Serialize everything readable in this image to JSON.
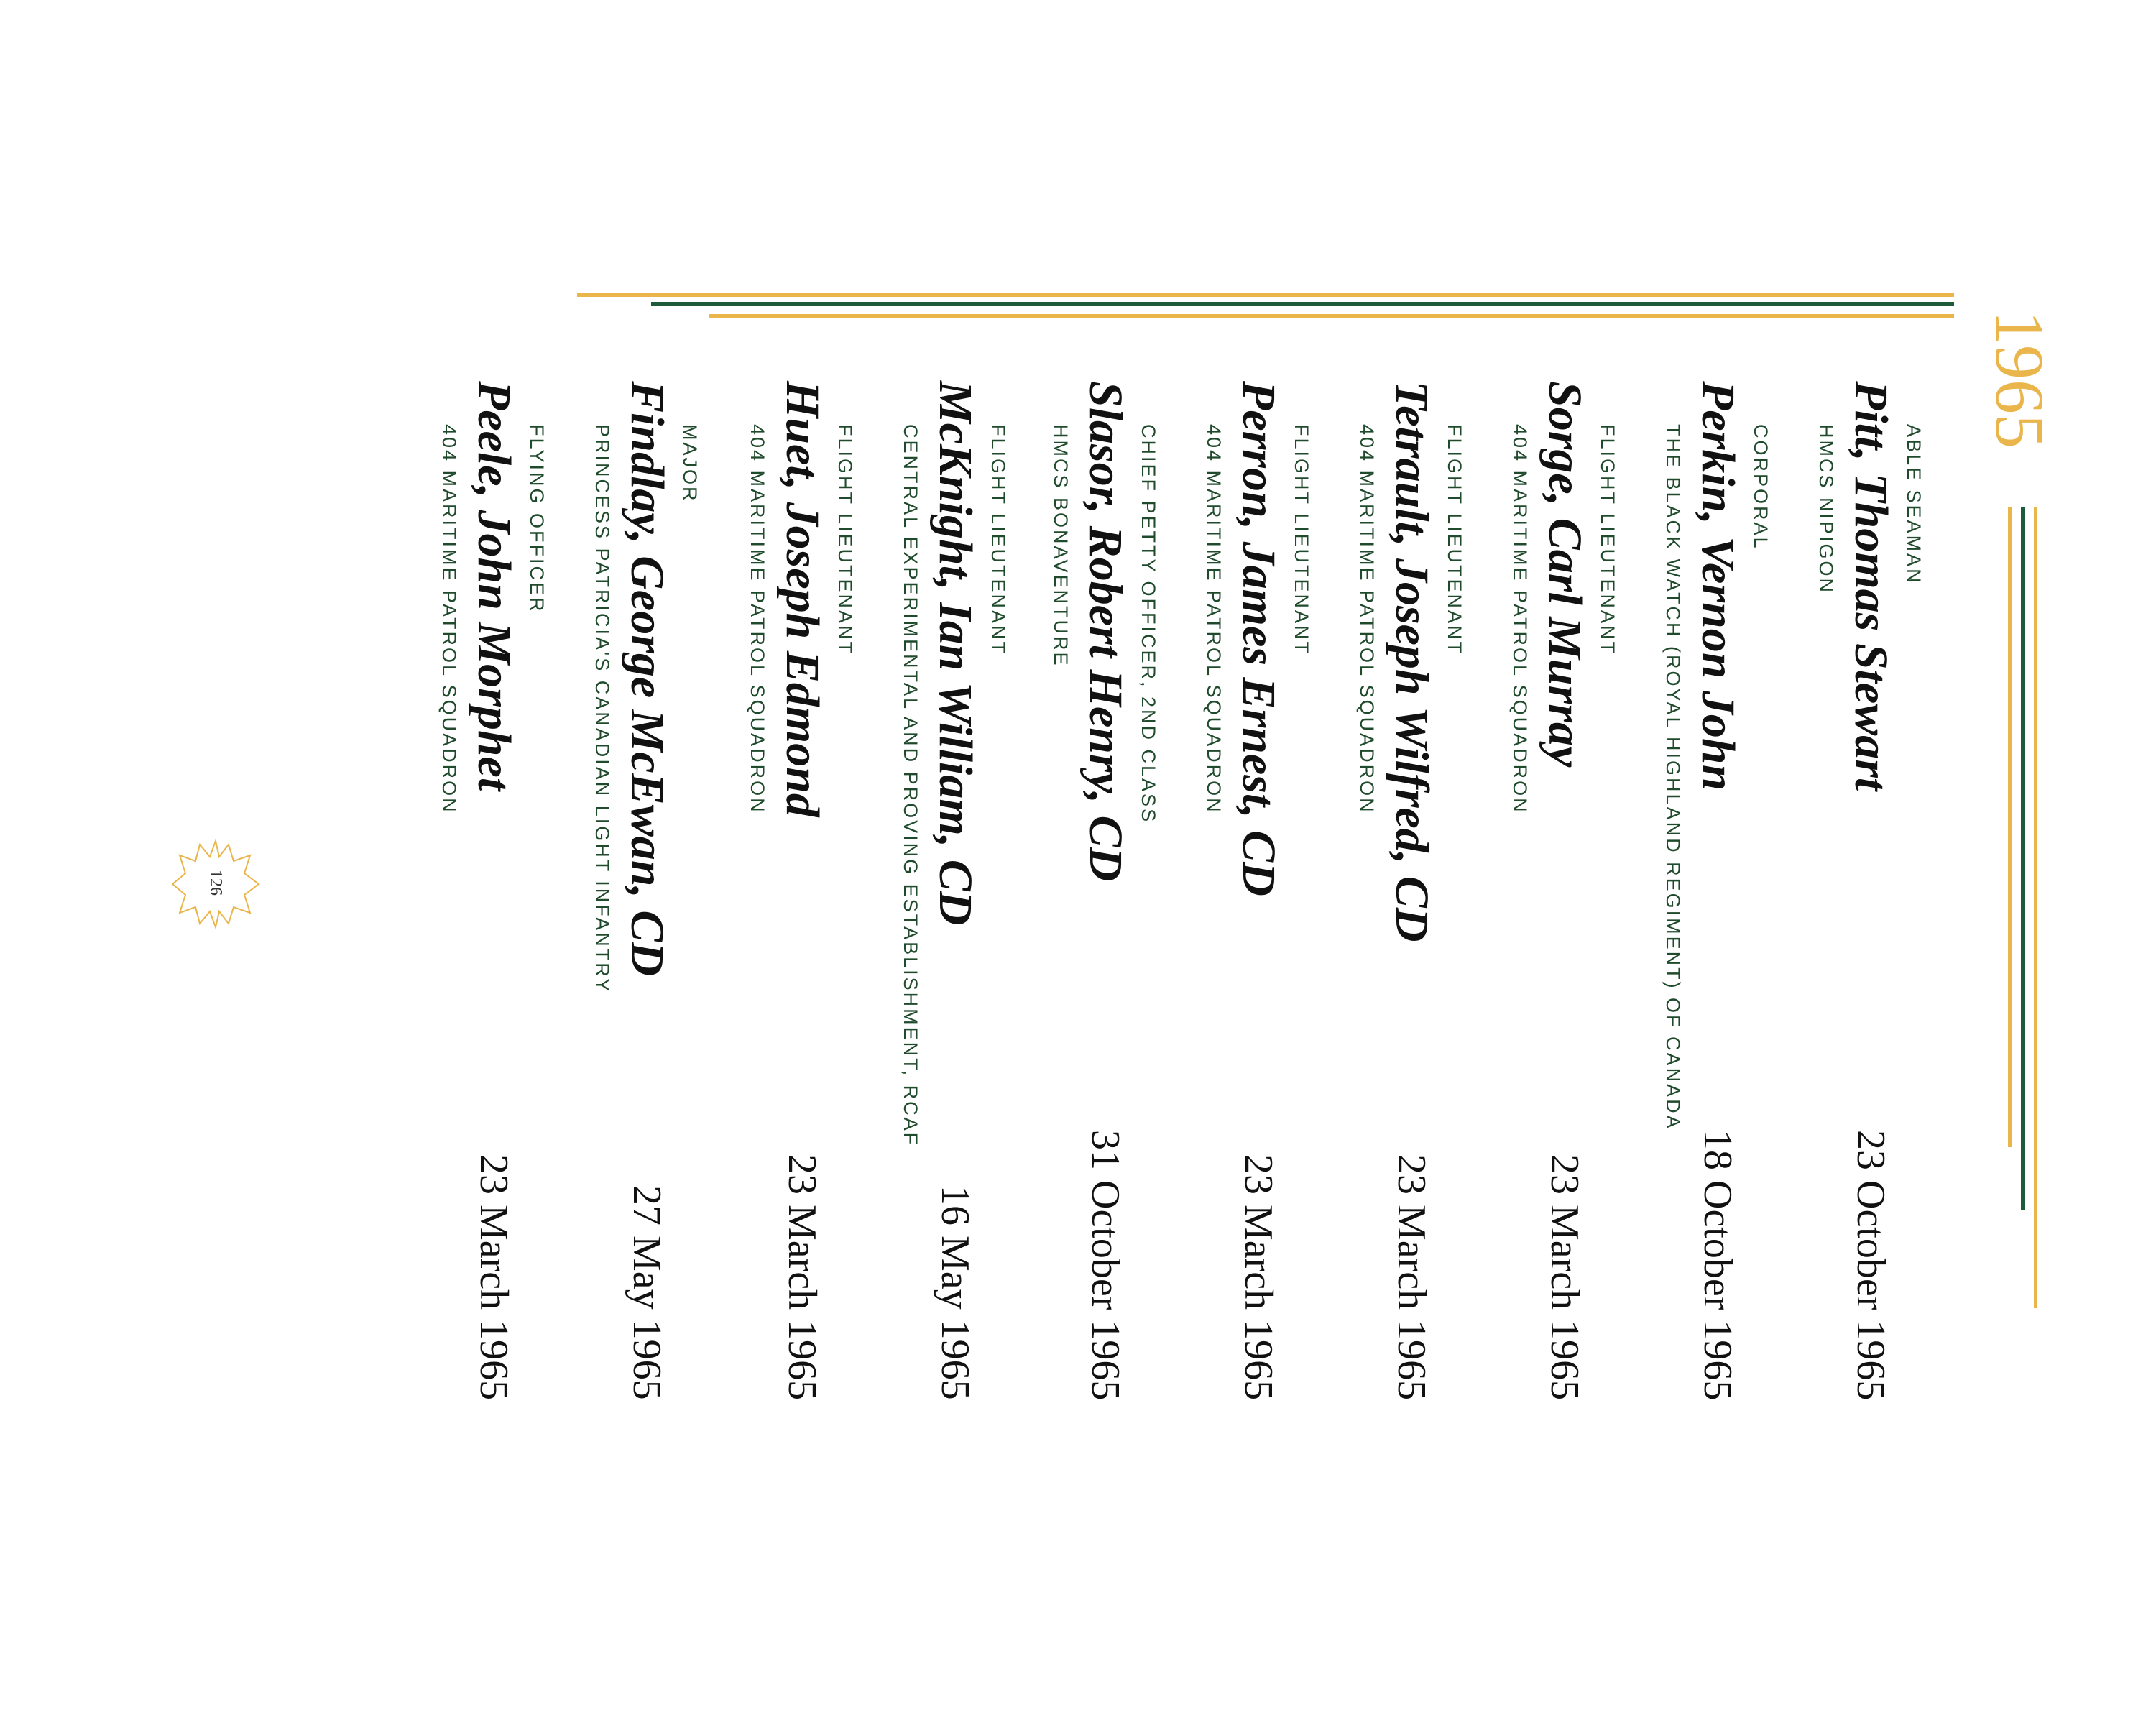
{
  "page": {
    "year_heading": "1965",
    "page_number": "126",
    "colors": {
      "gold": "#eab54a",
      "green": "#1f4a2c",
      "ink": "#111111"
    },
    "ornament_icon": "maple-leaf-outline-icon"
  },
  "entries": [
    {
      "rank": "ABLE SEAMAN",
      "name": "Pitt, Thomas Stewart",
      "unit": "HMCS NIPIGON",
      "date": "23 October 1965"
    },
    {
      "rank": "CORPORAL",
      "name": "Perkin, Vernon John",
      "unit": "THE BLACK WATCH (ROYAL HIGHLAND REGIMENT) OF CANADA",
      "date": "18 October 1965"
    },
    {
      "rank": "FLIGHT LIEUTENANT",
      "name": "Sorge, Carl Murray",
      "unit": "404 MARITIME PATROL SQUADRON",
      "date": "23 March 1965"
    },
    {
      "rank": "FLIGHT LIEUTENANT",
      "name": "Tetrault, Joseph Wilfred, CD",
      "unit": "404 MARITIME PATROL SQUADRON",
      "date": "23 March 1965"
    },
    {
      "rank": "FLIGHT LIEUTENANT",
      "name": "Perron, James Ernest, CD",
      "unit": "404 MARITIME PATROL SQUADRON",
      "date": "23 March 1965"
    },
    {
      "rank": "CHIEF PETTY OFFICER, 2ND CLASS",
      "name": "Slasor, Robert Henry, CD",
      "unit": "HMCS BONAVENTURE",
      "date": "31 October 1965"
    },
    {
      "rank": "FLIGHT LIEUTENANT",
      "name": "McKnight, Ian William, CD",
      "unit": "CENTRAL EXPERIMENTAL AND PROVING ESTABLISHMENT, RCAF",
      "date": "16 May 1965"
    },
    {
      "rank": "FLIGHT LIEUTENANT",
      "name": "Huet, Joseph Edmond",
      "unit": "404 MARITIME PATROL SQUADRON",
      "date": "23 March 1965"
    },
    {
      "rank": "MAJOR",
      "name": "Findlay, George McEwan, CD",
      "unit": "PRINCESS PATRICIA'S CANADIAN LIGHT INFANTRY",
      "date": "27 May 1965"
    },
    {
      "rank": "FLYING OFFICER",
      "name": "Peele, John Morphet",
      "unit": "404 MARITIME PATROL SQUADRON",
      "date": "23 March 1965"
    }
  ]
}
